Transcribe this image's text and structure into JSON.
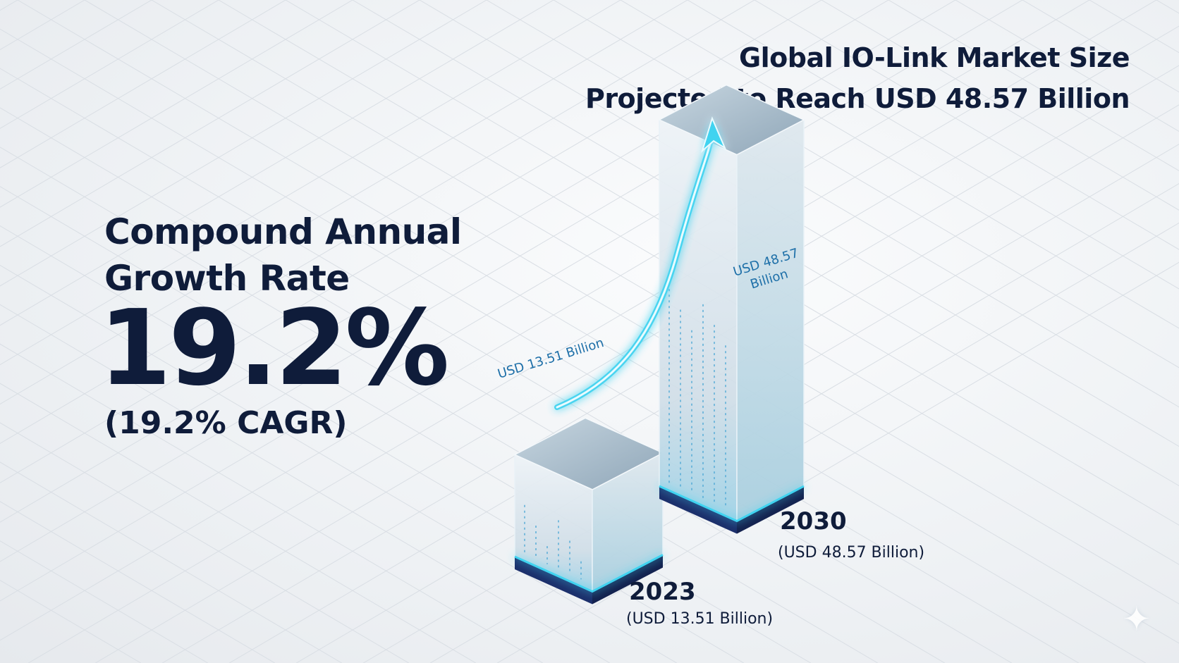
{
  "title": {
    "line1": "Global IO-Link Market Size",
    "line2": "Projected to Reach USD 48.57 Billion"
  },
  "cagr": {
    "label_line1": "Compound Annual",
    "label_line2": "Growth Rate",
    "value": "19.2%",
    "note": "(19.2% CAGR)"
  },
  "chart_data": {
    "type": "bar",
    "categories": [
      "2023",
      "2030"
    ],
    "values": [
      13.51,
      48.57
    ],
    "unit": "USD Billion",
    "bar_labels": [
      "USD 13.51 Billion",
      "USD 48.57 Billion"
    ],
    "category_sublabels": [
      "(USD 13.51 Billion)",
      "(USD 48.57 Billion)"
    ],
    "style": "3d-glass",
    "growth_arrow": true
  },
  "colors": {
    "text": "#0f1c3a",
    "accent": "#3fd3f0",
    "bar_base": "#1c2f6b",
    "label": "#1d6fa8"
  },
  "icons": {
    "corner": "sparkle-icon"
  }
}
